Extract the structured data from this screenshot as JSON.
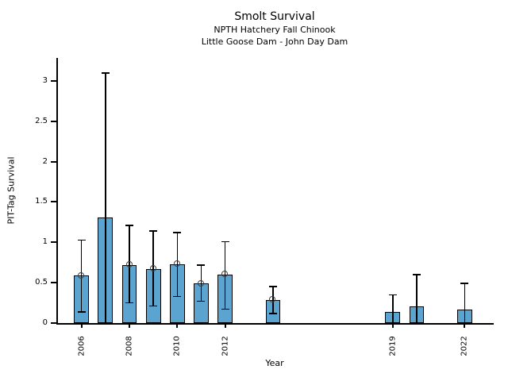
{
  "header": {
    "title": "Smolt Survival",
    "subtitle_line1": "NPTH Hatchery Fall Chinook",
    "subtitle_line2": "Little Goose Dam - John Day Dam"
  },
  "colors": {
    "bar_fill": "#5BA4CF",
    "bar_edge": "#000000",
    "error_bar": "#000000",
    "marker_edge": "#3d3d3d",
    "axis": "#000000",
    "background": "#ffffff"
  },
  "chart_data": {
    "type": "bar",
    "title": "Smolt Survival",
    "subtitle": [
      "NPTH Hatchery Fall Chinook",
      "Little Goose Dam - John Day Dam"
    ],
    "xlabel": "Year",
    "ylabel": "PIT-Tag Survival",
    "x": [
      2006,
      2007,
      2008,
      2009,
      2010,
      2011,
      2012,
      2014,
      2019,
      2020,
      2022
    ],
    "values": [
      0.59,
      1.31,
      0.72,
      0.67,
      0.73,
      0.49,
      0.6,
      0.29,
      0.14,
      0.21,
      0.17
    ],
    "ci_low": [
      0.14,
      0.0,
      0.25,
      0.21,
      0.33,
      0.27,
      0.17,
      0.12,
      0.0,
      0.0,
      0.0
    ],
    "ci_high": [
      1.03,
      3.1,
      1.21,
      1.14,
      1.12,
      0.72,
      1.01,
      0.45,
      0.35,
      0.6,
      0.49
    ],
    "point_markers": [
      true,
      false,
      true,
      true,
      true,
      true,
      true,
      true,
      false,
      false,
      false
    ],
    "xticks": [
      2006,
      2008,
      2010,
      2012,
      2019,
      2022
    ],
    "xtick_labels": [
      "2006",
      "2008",
      "2010",
      "2012",
      "2019",
      "2022"
    ],
    "yticks": [
      0,
      0.5,
      1,
      1.5,
      2,
      2.5,
      3
    ],
    "ytick_labels": [
      "0",
      "0.5",
      "1",
      "1.5",
      "2",
      "2.5",
      "3"
    ],
    "xlim": [
      2004.95,
      2023.15
    ],
    "ylim": [
      0,
      3.285
    ],
    "bar_width_years": 0.62,
    "grid": false,
    "legend": null,
    "error_bars": true,
    "xtick_rotation_deg": 90
  }
}
